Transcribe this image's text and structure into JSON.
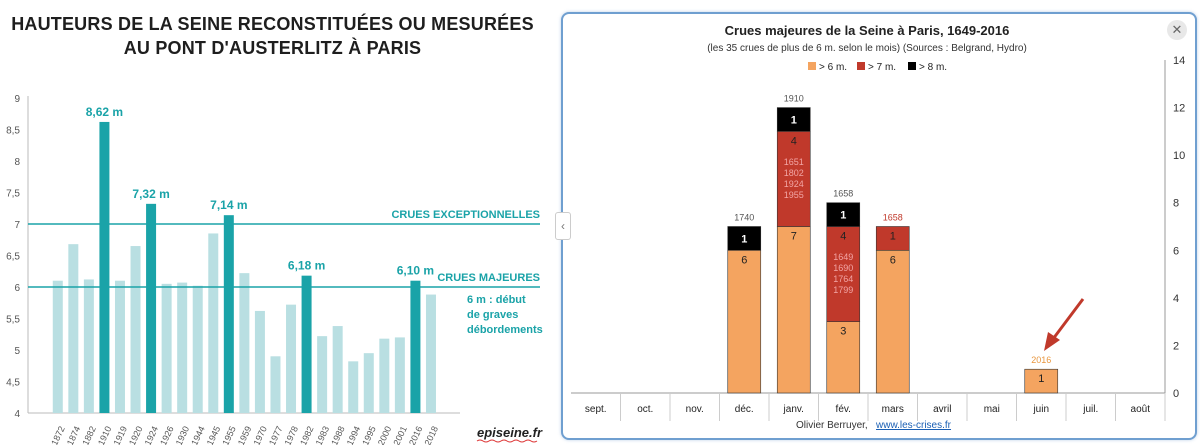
{
  "chart_data": [
    {
      "type": "bar",
      "title": "HAUTEURS DE LA SEINE RECONSTITUÉES OU MESURÉES",
      "subtitle": "AU PONT D'AUSTERLITZ À PARIS",
      "categories": [
        "1872",
        "1874",
        "1882",
        "1910",
        "1919",
        "1920",
        "1924",
        "1926",
        "1930",
        "1944",
        "1945",
        "1955",
        "1959",
        "1970",
        "1977",
        "1978",
        "1982",
        "1983",
        "1988",
        "1994",
        "1995",
        "2000",
        "2001",
        "2016",
        "2018"
      ],
      "values": [
        6.1,
        6.68,
        6.12,
        8.62,
        6.1,
        6.65,
        7.32,
        6.05,
        6.07,
        6.02,
        6.85,
        7.14,
        6.22,
        5.62,
        4.9,
        5.72,
        6.18,
        5.22,
        5.38,
        4.82,
        4.95,
        5.18,
        5.2,
        6.1,
        5.88
      ],
      "highlighted": [
        "1910",
        "1924",
        "1955",
        "1982",
        "2016"
      ],
      "data_labels": [
        {
          "category": "1910",
          "label": "8,62 m"
        },
        {
          "category": "1924",
          "label": "7,32 m"
        },
        {
          "category": "1955",
          "label": "7,14 m"
        },
        {
          "category": "1982",
          "label": "6,18 m"
        },
        {
          "category": "2016",
          "label": "6,10 m"
        }
      ],
      "y_ticks": [
        "4",
        "4,5",
        "5",
        "5,5",
        "6",
        "6,5",
        "7",
        "7,5",
        "8",
        "8,5",
        "9"
      ],
      "ylim": [
        4,
        9
      ],
      "reference_lines": [
        {
          "y": 7,
          "label": "CRUES EXCEPTIONNELLES"
        },
        {
          "y": 6,
          "label": "CRUES MAJEURES",
          "note": [
            "6 m : début",
            "de graves",
            "débordements"
          ]
        }
      ],
      "colors": {
        "normal": "#b9dfe2",
        "highlight": "#1aa3a8",
        "line": "#1aa3a8",
        "label": "#1aa3a8"
      },
      "source": "episeine.fr"
    },
    {
      "type": "bar",
      "stacked": true,
      "title": "Crues majeures de la Seine à Paris, 1649-2016",
      "subtitle": "(les 35 crues de plus de 6 m. selon le mois) (Sources : Belgrand, Hydro)",
      "categories": [
        "sept.",
        "oct.",
        "nov.",
        "déc.",
        "janv.",
        "fév.",
        "mars",
        "avril",
        "mai",
        "juin",
        "juil.",
        "août"
      ],
      "series": [
        {
          "name": "> 6 m.",
          "color": "#f4a460",
          "values": [
            0,
            0,
            0,
            6,
            7,
            3,
            6,
            0,
            0,
            1,
            0,
            0
          ]
        },
        {
          "name": "> 7 m.",
          "color": "#c0392b",
          "values": [
            0,
            0,
            0,
            0,
            4,
            4,
            1,
            0,
            0,
            0,
            0,
            0
          ]
        },
        {
          "name": "> 8 m.",
          "color": "#000000",
          "values": [
            0,
            0,
            0,
            1,
            1,
            1,
            0,
            0,
            0,
            0,
            0,
            0
          ]
        }
      ],
      "y_ticks": [
        "0",
        "2",
        "4",
        "6",
        "8",
        "10",
        "12",
        "14"
      ],
      "ylim": [
        0,
        14
      ],
      "annotations": [
        {
          "category": "déc.",
          "text": "1740"
        },
        {
          "category": "janv.",
          "text": "1910"
        },
        {
          "category": "fév.",
          "text": "1658"
        },
        {
          "category": "mars",
          "text": "1658"
        },
        {
          "category": "juin",
          "text": "2016"
        }
      ],
      "inner_notes": [
        {
          "category": "janv.",
          "lines": [
            "1651",
            "1802",
            "1924",
            "1955"
          ]
        },
        {
          "category": "fév.",
          "lines": [
            "1649",
            "1690",
            "1764",
            "1799"
          ]
        }
      ],
      "author": "Olivier Berruyer,",
      "link": "www.les-crises.fr",
      "close_label": "✕",
      "prev_label": "‹"
    }
  ]
}
